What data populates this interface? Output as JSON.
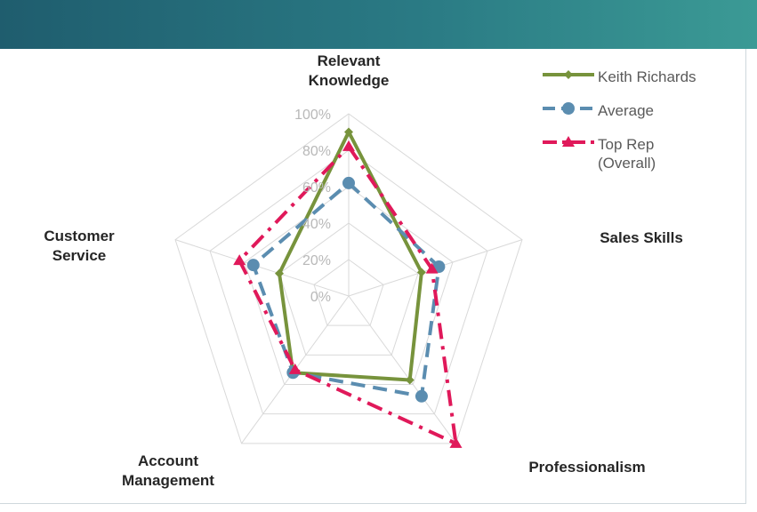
{
  "chart_data": {
    "type": "radar",
    "axes": [
      "Relevant\nKnowledge",
      "Sales Skills",
      "Professionalism",
      "Account\nManagement",
      "Customer\nService"
    ],
    "tick_labels": [
      "0%",
      "20%",
      "40%",
      "60%",
      "80%",
      "100%"
    ],
    "rlim": [
      0,
      100
    ],
    "grid": true,
    "legend_position": "top-right",
    "series": [
      {
        "name": "Keith Richards",
        "values": [
          90,
          42,
          57,
          52,
          40
        ],
        "color": "#77933c",
        "style": "solid",
        "marker": "diamond"
      },
      {
        "name": "Average",
        "values": [
          62,
          52,
          68,
          52,
          55
        ],
        "color": "#5b8db0",
        "style": "dashed",
        "marker": "circle"
      },
      {
        "name": "Top Rep\n(Overall)",
        "values": [
          82,
          48,
          100,
          50,
          63
        ],
        "color": "#e0195a",
        "style": "dashdot",
        "marker": "triangle"
      }
    ]
  }
}
